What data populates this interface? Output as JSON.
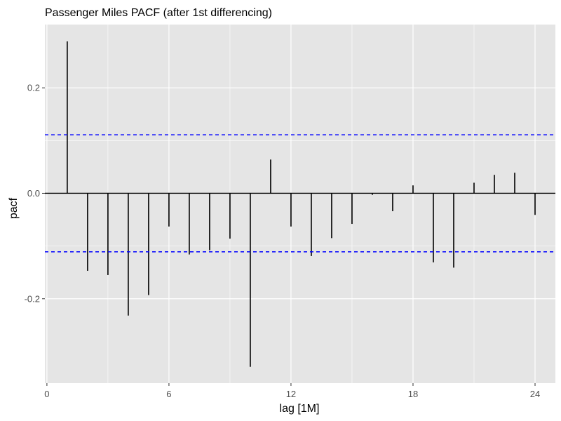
{
  "chart_data": {
    "type": "bar",
    "title": "Passenger Miles PACF (after 1st differencing)",
    "xlabel": "lag [1M]",
    "ylabel": "pacf",
    "x": [
      1,
      2,
      3,
      4,
      5,
      6,
      7,
      8,
      9,
      10,
      11,
      12,
      13,
      14,
      15,
      16,
      17,
      18,
      19,
      20,
      21,
      22,
      23,
      24
    ],
    "values": [
      0.288,
      -0.147,
      -0.155,
      -0.232,
      -0.193,
      -0.063,
      -0.116,
      -0.108,
      -0.086,
      -0.329,
      0.064,
      -0.063,
      -0.119,
      -0.085,
      -0.058,
      -0.003,
      -0.034,
      0.015,
      -0.131,
      -0.141,
      0.02,
      0.035,
      0.039,
      -0.041
    ],
    "xlim": [
      -0.1,
      25
    ],
    "ylim": [
      -0.36,
      0.32
    ],
    "x_ticks": [
      0,
      6,
      12,
      18,
      24
    ],
    "x_tick_labels": [
      "0",
      "6",
      "12",
      "18",
      "24"
    ],
    "y_ticks": [
      -0.2,
      0.0,
      0.2
    ],
    "y_tick_labels": [
      "-0.2",
      "0.0",
      "0.2"
    ],
    "confidence_bounds": [
      0.111,
      -0.111
    ],
    "grid": true,
    "colors": {
      "panel": "#e5e5e5",
      "grid": "#ffffff",
      "bars": "#000000",
      "bounds": "#0000ff"
    }
  }
}
